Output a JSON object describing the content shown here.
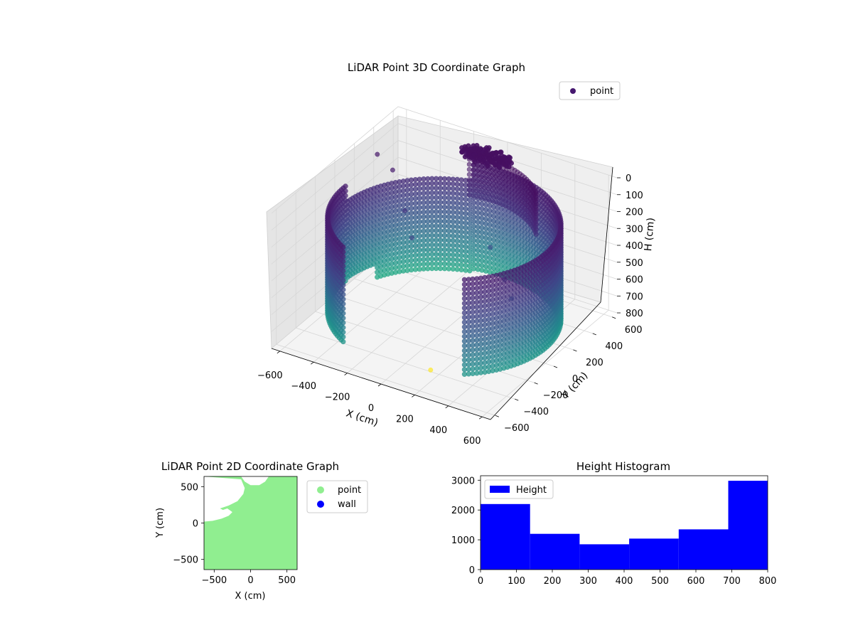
{
  "chart_data": [
    {
      "type": "scatter",
      "projection": "3d",
      "title": "LiDAR Point 3D Coordinate Graph",
      "xlabel": "X (cm)",
      "ylabel": "Y (cm)",
      "zlabel": "H (cm)",
      "xlim": [
        -650,
        650
      ],
      "ylim": [
        -650,
        650
      ],
      "zlim": [
        800,
        0
      ],
      "z_axis_inverted": true,
      "x_ticks": [
        "−600",
        "−400",
        "−200",
        "0",
        "200",
        "400",
        "600"
      ],
      "y_ticks": [
        "−600",
        "−400",
        "−200",
        "0",
        "200",
        "400",
        "600"
      ],
      "z_ticks": [
        "0",
        "100",
        "200",
        "300",
        "400",
        "500",
        "600",
        "700",
        "800"
      ],
      "grid": true,
      "colormap": "viridis",
      "legend": {
        "placement": "upper-right",
        "entries": [
          "point"
        ]
      },
      "legend_marker_color": "#46186f",
      "series": [
        {
          "name": "point",
          "description_of_shape": "circular wall of points around the scanner, radius ~600 cm, heights 0–800 cm",
          "wall": {
            "radius": 600,
            "h_min": 0,
            "h_max": 800,
            "angle_span_deg": [
              0,
              290
            ]
          },
          "cloud_near_ceiling": {
            "x": -50,
            "y": 520,
            "h": 20
          },
          "scattered_points": [
            {
              "x": -600,
              "y": 350,
              "h": 120
            },
            {
              "x": -480,
              "y": 300,
              "h": 150
            },
            {
              "x": -350,
              "y": 200,
              "h": 300
            },
            {
              "x": -250,
              "y": 100,
              "h": 380
            },
            {
              "x": 100,
              "y": 300,
              "h": 420
            },
            {
              "x": 300,
              "y": 100,
              "h": 450
            },
            {
              "x": 400,
              "y": 0,
              "h": 480
            },
            {
              "x": 150,
              "y": -400,
              "h": 790
            }
          ]
        }
      ]
    },
    {
      "type": "scatter",
      "title": "LiDAR Point 2D Coordinate Graph",
      "xlabel": "X (cm)",
      "ylabel": "Y (cm)",
      "xlim": [
        -640,
        640
      ],
      "ylim": [
        -640,
        640
      ],
      "x_ticks": [
        "−500",
        "0",
        "500"
      ],
      "y_ticks": [
        "−500",
        "0",
        "500"
      ],
      "legend": {
        "placement": "outside-right",
        "entries": [
          "point",
          "wall"
        ]
      },
      "series": [
        {
          "name": "point",
          "color": "#90ee90",
          "description_of_shape": "filled region covering the view except an empty notch at upper-left"
        },
        {
          "name": "wall",
          "color": "#0000ff"
        }
      ],
      "empty_region_outline": [
        [
          -640,
          640
        ],
        [
          -130,
          640
        ],
        [
          -80,
          570
        ],
        [
          0,
          520
        ],
        [
          120,
          520
        ],
        [
          200,
          570
        ],
        [
          250,
          640
        ],
        [
          640,
          640
        ],
        [
          640,
          -640
        ],
        [
          -640,
          -640
        ],
        [
          -640,
          20
        ],
        [
          -520,
          30
        ],
        [
          -400,
          60
        ],
        [
          -300,
          100
        ],
        [
          -250,
          150
        ],
        [
          -320,
          200
        ],
        [
          -380,
          180
        ],
        [
          -420,
          200
        ],
        [
          -300,
          240
        ],
        [
          -180,
          300
        ],
        [
          -100,
          400
        ],
        [
          -80,
          480
        ],
        [
          -130,
          600
        ]
      ]
    },
    {
      "type": "bar",
      "subtype": "histogram",
      "title": "Height Histogram",
      "xlim": [
        0,
        800
      ],
      "ylim": [
        0,
        3150
      ],
      "x_ticks": [
        "0",
        "100",
        "200",
        "300",
        "400",
        "500",
        "600",
        "700",
        "800"
      ],
      "y_ticks": [
        "0",
        "1000",
        "2000",
        "3000"
      ],
      "legend": {
        "placement": "upper-left",
        "entries": [
          "Height"
        ]
      },
      "series": [
        {
          "name": "Height",
          "color": "#0000ff",
          "bin_edges": [
            0,
            138,
            276,
            414,
            552,
            690,
            800
          ],
          "values": [
            2200,
            1200,
            850,
            1040,
            1350,
            2980
          ]
        }
      ]
    }
  ]
}
